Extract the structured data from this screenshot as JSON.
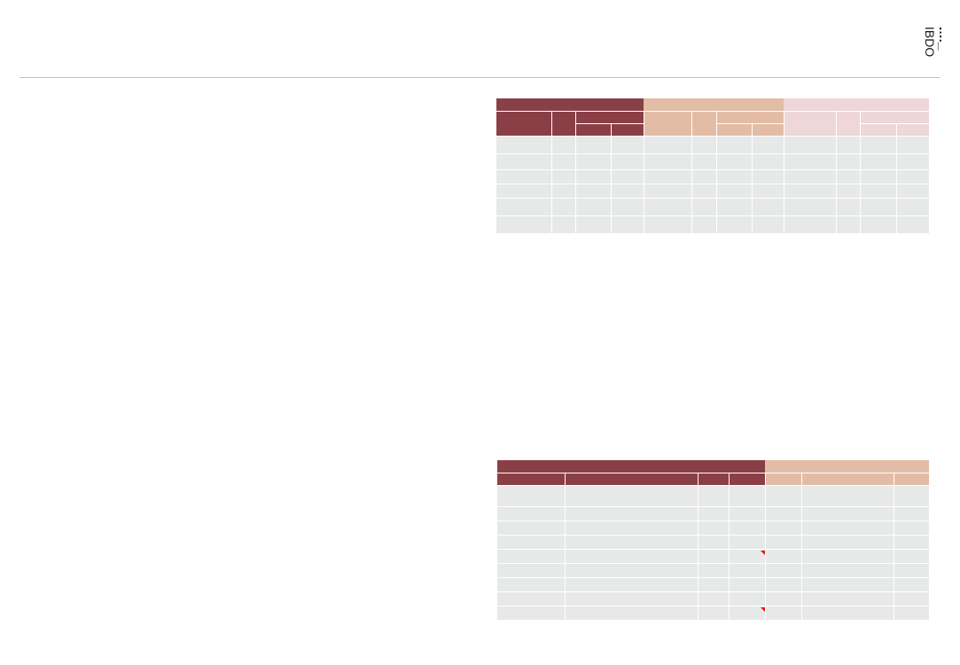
{
  "header": {
    "logo_icon": "bdo-logo-icon",
    "colors": {
      "maroon": "#8a3f46",
      "peach": "#e3bca6",
      "pink": "#efd6d9",
      "row": "#e7e9e8",
      "flag": "#e0121b"
    }
  },
  "table_top": {
    "column_groups": [
      "",
      "",
      ""
    ],
    "rows": 6
  },
  "table_bottom": {
    "column_groups": [
      "",
      ""
    ],
    "rows": 9,
    "flagged_rows": [
      4,
      8
    ]
  }
}
